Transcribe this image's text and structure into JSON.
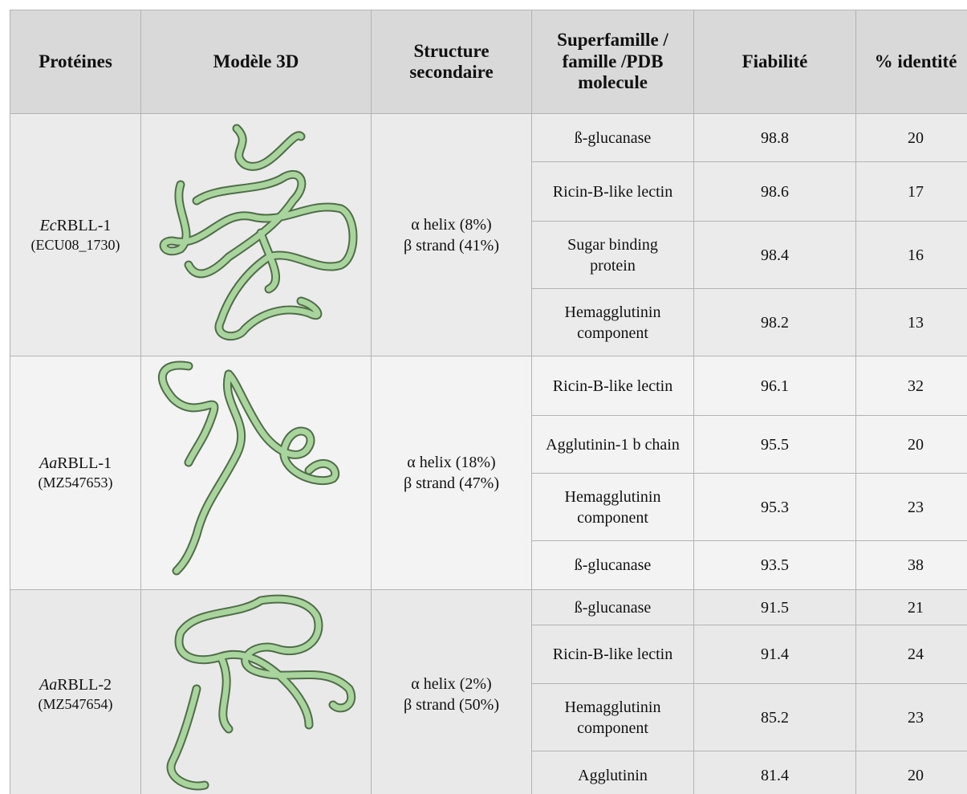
{
  "table": {
    "header": [
      "Protéines",
      "Modèle 3D",
      "Structure secondaire",
      "Superfamille / famille /PDB molecule",
      "Fiabilité",
      "% identité"
    ],
    "groups": [
      {
        "species": "Ec",
        "name": "RBLL-1",
        "accession": "(ECU08_1730)",
        "helix": "α helix (8%)",
        "strand": "β strand (41%)",
        "hits": [
          {
            "family": "ß-glucanase",
            "reliability": 98.8,
            "identity": 20
          },
          {
            "family": "Ricin-B-like lectin",
            "reliability": 98.6,
            "identity": 17
          },
          {
            "family": "Sugar binding protein",
            "reliability": 98.4,
            "identity": 16
          },
          {
            "family": "Hemagglutinin component",
            "reliability": 98.2,
            "identity": 13
          }
        ]
      },
      {
        "species": "Aa",
        "name": "RBLL-1",
        "accession": "(MZ547653)",
        "helix": "α helix (18%)",
        "strand": "β strand (47%)",
        "hits": [
          {
            "family": "Ricin-B-like lectin",
            "reliability": 96.1,
            "identity": 32
          },
          {
            "family": "Agglutinin-1 b chain",
            "reliability": 95.5,
            "identity": 20
          },
          {
            "family": "Hemagglutinin component",
            "reliability": 95.3,
            "identity": 23
          },
          {
            "family": "ß-glucanase",
            "reliability": 93.5,
            "identity": 38
          }
        ]
      },
      {
        "species": "Aa",
        "name": "RBLL-2",
        "accession": "(MZ547654)",
        "helix": "α helix (2%)",
        "strand": "β strand (50%)",
        "hits": [
          {
            "family": "ß-glucanase",
            "reliability": 91.5,
            "identity": 21
          },
          {
            "family": "Ricin-B-like lectin",
            "reliability": 91.4,
            "identity": 24
          },
          {
            "family": "Hemagglutinin component",
            "reliability": 85.2,
            "identity": 23
          },
          {
            "family": "Agglutinin",
            "reliability": 81.4,
            "identity": 20
          }
        ]
      }
    ]
  }
}
